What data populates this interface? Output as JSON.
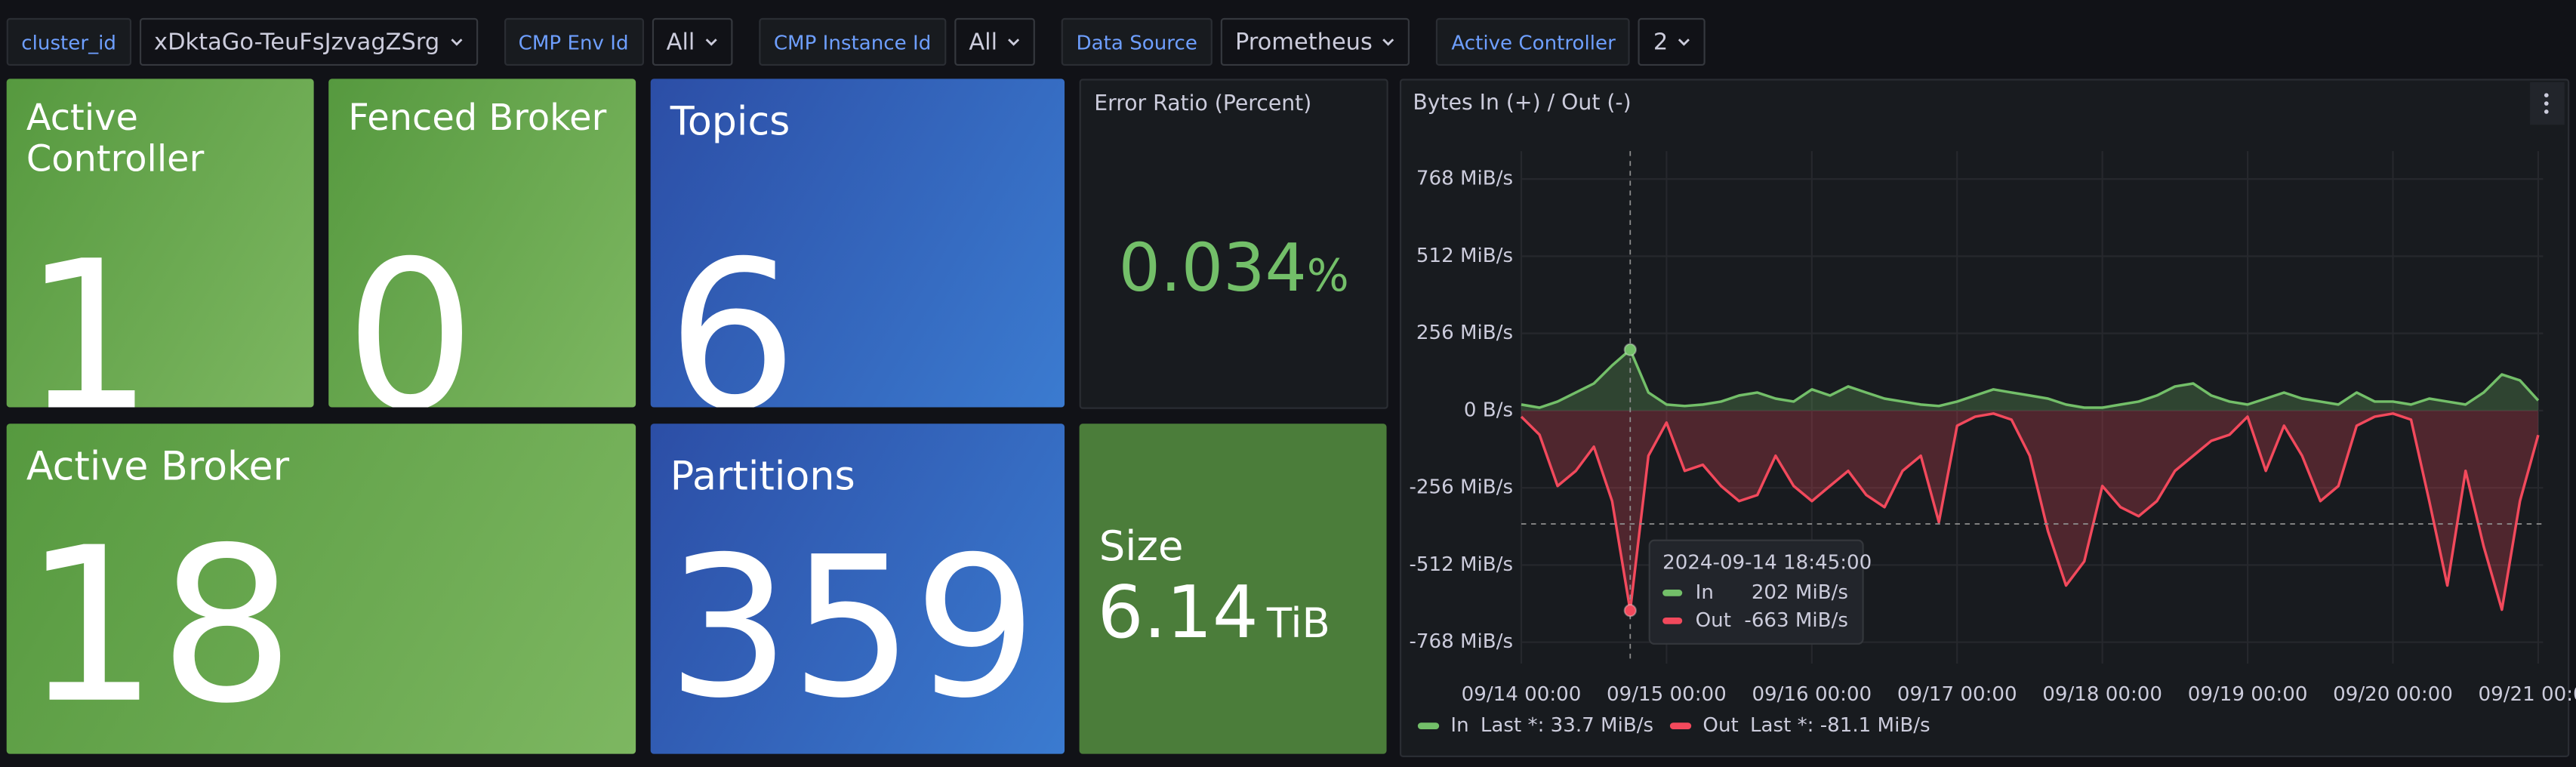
{
  "variables": [
    {
      "label": "cluster_id",
      "value": "xDktaGo-TeuFsJzvagZSrg"
    },
    {
      "label": "CMP Env Id",
      "value": "All"
    },
    {
      "label": "CMP Instance Id",
      "value": "All"
    },
    {
      "label": "Data Source",
      "value": "Prometheus"
    },
    {
      "label": "Active Controller",
      "value": "2"
    }
  ],
  "stats": {
    "active_controller": {
      "title": "Active Controller",
      "value": "1"
    },
    "fenced_broker": {
      "title": "Fenced Broker",
      "value": "0"
    },
    "topics": {
      "title": "Topics",
      "value": "6"
    },
    "error_ratio": {
      "title": "Error Ratio (Percent)",
      "value": "0.034",
      "unit": "%"
    },
    "active_broker": {
      "title": "Active Broker",
      "value": "18"
    },
    "partitions": {
      "title": "Partitions",
      "value": "359"
    },
    "size": {
      "title": "Size",
      "value": "6.14",
      "unit": "TiB"
    }
  },
  "chart_data": {
    "type": "line",
    "title": "Bytes In (+) / Out (-)",
    "x": [
      "09/14 00:00",
      "09/14 03:00",
      "09/14 06:00",
      "09/14 09:00",
      "09/14 12:00",
      "09/14 15:00",
      "09/14 18:00",
      "09/14 21:00",
      "09/15 00:00",
      "09/15 03:00",
      "09/15 06:00",
      "09/15 09:00",
      "09/15 12:00",
      "09/15 15:00",
      "09/15 18:00",
      "09/15 21:00",
      "09/16 00:00",
      "09/16 03:00",
      "09/16 06:00",
      "09/16 09:00",
      "09/16 12:00",
      "09/16 15:00",
      "09/16 18:00",
      "09/16 21:00",
      "09/17 00:00",
      "09/17 03:00",
      "09/17 06:00",
      "09/17 09:00",
      "09/17 12:00",
      "09/17 15:00",
      "09/17 18:00",
      "09/17 21:00",
      "09/18 00:00",
      "09/18 03:00",
      "09/18 06:00",
      "09/18 09:00",
      "09/18 12:00",
      "09/18 15:00",
      "09/18 18:00",
      "09/18 21:00",
      "09/19 00:00",
      "09/19 03:00",
      "09/19 06:00",
      "09/19 09:00",
      "09/19 12:00",
      "09/19 15:00",
      "09/19 18:00",
      "09/19 21:00",
      "09/20 00:00",
      "09/20 03:00",
      "09/20 06:00",
      "09/20 09:00",
      "09/20 12:00",
      "09/20 15:00",
      "09/20 18:00",
      "09/20 21:00",
      "09/21 00:00"
    ],
    "series": [
      {
        "name": "In",
        "color": "#73bf69",
        "legend": "Last *: 33.7 MiB/s",
        "values": [
          20,
          10,
          30,
          60,
          90,
          150,
          202,
          60,
          20,
          15,
          20,
          30,
          50,
          60,
          40,
          30,
          70,
          50,
          80,
          60,
          40,
          30,
          20,
          15,
          30,
          50,
          70,
          60,
          50,
          40,
          20,
          10,
          10,
          20,
          30,
          50,
          80,
          90,
          50,
          30,
          20,
          40,
          60,
          40,
          30,
          20,
          60,
          30,
          30,
          20,
          40,
          30,
          20,
          60,
          120,
          100,
          33.7
        ]
      },
      {
        "name": "Out",
        "color": "#f2495c",
        "legend": "Last *: -81.1 MiB/s",
        "values": [
          -20,
          -80,
          -250,
          -200,
          -120,
          -300,
          -663,
          -150,
          -40,
          -200,
          -180,
          -250,
          -300,
          -280,
          -150,
          -250,
          -300,
          -250,
          -200,
          -280,
          -320,
          -200,
          -150,
          -370,
          -50,
          -20,
          -10,
          -30,
          -150,
          -400,
          -580,
          -500,
          -250,
          -320,
          -350,
          -300,
          -200,
          -150,
          -100,
          -80,
          -20,
          -200,
          -50,
          -150,
          -300,
          -250,
          -50,
          -20,
          -10,
          -30,
          -300,
          -580,
          -200,
          -450,
          -660,
          -300,
          -81.1
        ]
      }
    ],
    "xlim": [
      "09/14 00:00",
      "09/21 00:00"
    ],
    "xticks": [
      "09/14 00:00",
      "09/15 00:00",
      "09/16 00:00",
      "09/17 00:00",
      "09/18 00:00",
      "09/19 00:00",
      "09/20 00:00",
      "09/21 00:00"
    ],
    "ylim": [
      -860,
      860
    ],
    "yticks": [
      {
        "value": -768,
        "label": "-768 MiB/s"
      },
      {
        "value": -512,
        "label": "-512 MiB/s"
      },
      {
        "value": -256,
        "label": "-256 MiB/s"
      },
      {
        "value": 0,
        "label": "0 B/s"
      },
      {
        "value": 256,
        "label": "256 MiB/s"
      },
      {
        "value": 512,
        "label": "512 MiB/s"
      },
      {
        "value": 768,
        "label": "768 MiB/s"
      }
    ],
    "grid": true,
    "tooltip": {
      "time": "2024-09-14 18:45:00",
      "index": 6,
      "rows": [
        "202 MiB/s",
        "-663 MiB/s"
      ]
    }
  }
}
